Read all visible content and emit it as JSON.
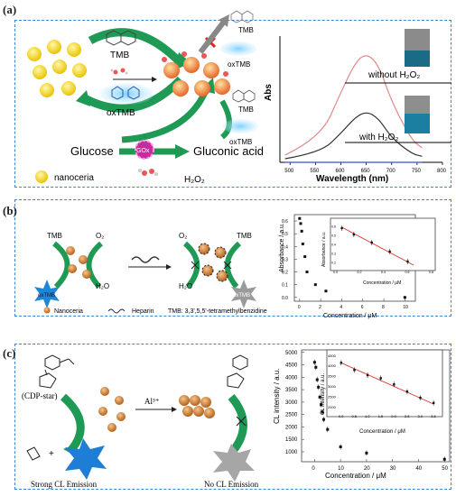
{
  "panel_a": {
    "label": "(a)",
    "tmb": "TMB",
    "oxtmb": "oxTMB",
    "oxtmb_top": "oxTMB",
    "tmb_top": "TMB",
    "tmb_right": "TMB",
    "oxtmb_right": "oxTMB",
    "glucose": "Glucose",
    "gox": "GOx",
    "gluconic": "Gluconic acid",
    "legend_nanoceria": "nanoceria",
    "legend_h2o2": "H₂O₂",
    "chart_ylabel": "Abs",
    "chart_xlabel": "Wavelength (nm)",
    "vial1_label": "without H₂O₂",
    "vial2_label": "with H₂O₂",
    "tick_x": [
      "500",
      "550",
      "600",
      "650",
      "700",
      "750",
      "800"
    ]
  },
  "panel_b": {
    "label": "(b)",
    "tmb_l": "TMB",
    "o2_l": "O₂",
    "h2o": "H₂O",
    "oxtmb": "oxTMB",
    "o2_r": "O₂",
    "tmb_r": "TMB",
    "h2o_r": "H₂O",
    "oxtmb_r": "oxTMB",
    "legend_nanoceria": "Nanoceria",
    "legend_heparin": "Heparin",
    "legend_tmb": "TMB: 3,3',5,5'-tetramethylbenzidine",
    "ylabel": "Absorbance / a.u.",
    "xlabel": "Concentration / μM",
    "inset_ylabel": "Absorbance / a.u.",
    "inset_xlabel": "Concentration / μM",
    "yticks": [
      "0.0",
      "0.1",
      "0.2",
      "0.3",
      "0.4",
      "0.5",
      "0.6"
    ],
    "xticks": [
      "0",
      "2",
      "4",
      "6",
      "8",
      "10"
    ],
    "inset_yticks": [
      "0.2",
      "0.3",
      "0.4",
      "0.5",
      "0.6"
    ],
    "inset_xticks": [
      "0.0",
      "0.2",
      "0.4",
      "0.6",
      "0.8"
    ]
  },
  "panel_c": {
    "label": "(c)",
    "cdp": "(CDP-star)",
    "al": "Al³⁺",
    "strong": "Strong CL Emission",
    "nocl": "No CL Emission",
    "ylabel": "CL intensity / a.u.",
    "xlabel": "Concentration / μM",
    "inset_ylabel": "CL intensity / a.u.",
    "inset_xlabel": "Concentration / μM",
    "yticks": [
      "1000",
      "1500",
      "2000",
      "2500",
      "3000",
      "3500",
      "4000",
      "4500",
      "5000"
    ],
    "xticks": [
      "0",
      "10",
      "20",
      "30",
      "40",
      "50"
    ],
    "inset_yticks": [
      "2000",
      "2500",
      "3000",
      "3500",
      "4000",
      "4500"
    ],
    "inset_xticks": [
      "0.0",
      "0.5",
      "1.0",
      "1.5",
      "2.0",
      "2.5",
      "3.0",
      "3.5"
    ]
  },
  "colors": {
    "border": "#3a86d6",
    "green": "#1f9a55",
    "fit": "#d9332b",
    "ceria": "#d2812f",
    "nano_yellow": "#f5e22b"
  },
  "chart_data": [
    {
      "type": "line",
      "xlabel": "Wavelength (nm)",
      "ylabel": "Abs",
      "xlim": [
        480,
        800
      ],
      "series": [
        {
          "name": "with H₂O₂",
          "color": "#e08a8a",
          "x": [
            490,
            560,
            600,
            630,
            652,
            675,
            700,
            740,
            760
          ],
          "values": [
            0.06,
            0.2,
            0.58,
            0.84,
            0.9,
            0.8,
            0.5,
            0.18,
            0.12
          ]
        },
        {
          "color": "#333333",
          "x": [
            490,
            560,
            600,
            630,
            652,
            675,
            700,
            740,
            760
          ],
          "values": [
            0.03,
            0.08,
            0.24,
            0.38,
            0.42,
            0.36,
            0.2,
            0.07,
            0.05
          ]
        },
        {
          "name": "without H₂O₂",
          "color": "#3355cc",
          "x": [
            490,
            760
          ],
          "values": [
            0.0,
            0.0
          ]
        }
      ]
    },
    {
      "type": "scatter",
      "xlabel": "Concentration / μM",
      "ylabel": "Absorbance / a.u.",
      "xlim": [
        -0.5,
        11
      ],
      "ylim": [
        -0.03,
        0.65
      ],
      "x": [
        0,
        0.1,
        0.2,
        0.3,
        0.5,
        0.7,
        1.5,
        2.5,
        10
      ],
      "values": [
        0.62,
        0.58,
        0.52,
        0.42,
        0.32,
        0.2,
        0.1,
        0.05,
        0.0
      ]
    },
    {
      "type": "scatter",
      "xlabel": "Concentration / μM",
      "ylabel": "Absorbance / a.u.",
      "xlim": [
        0,
        0.8
      ],
      "ylim": [
        0.15,
        0.65
      ],
      "x": [
        0.05,
        0.15,
        0.3,
        0.45,
        0.6
      ],
      "values": [
        0.58,
        0.51,
        0.42,
        0.32,
        0.21
      ],
      "fit": {
        "x": [
          0.05,
          0.65
        ],
        "y": [
          0.59,
          0.17
        ]
      }
    },
    {
      "type": "scatter",
      "xlabel": "Concentration / μM",
      "ylabel": "CL intensity / a.u.",
      "xlim": [
        -5,
        52
      ],
      "ylim": [
        600,
        5100
      ],
      "x": [
        0,
        0.5,
        1,
        1.5,
        2,
        2.5,
        3,
        3.5,
        5,
        10,
        20,
        50
      ],
      "values": [
        4600,
        4400,
        3900,
        3600,
        3200,
        2900,
        2600,
        2300,
        1900,
        1200,
        950,
        700
      ]
    },
    {
      "type": "scatter",
      "xlabel": "Concentration / μM",
      "ylabel": "CL intensity / a.u.",
      "xlim": [
        -0.2,
        3.7
      ],
      "ylim": [
        1800,
        4600
      ],
      "x": [
        0,
        0.5,
        1.0,
        1.5,
        2.0,
        2.5,
        3.0,
        3.5
      ],
      "values": [
        4150,
        3800,
        3550,
        3400,
        3100,
        2750,
        2450,
        2200
      ],
      "fit": {
        "x": [
          0,
          3.5
        ],
        "y": [
          4150,
          2150
        ]
      }
    }
  ]
}
